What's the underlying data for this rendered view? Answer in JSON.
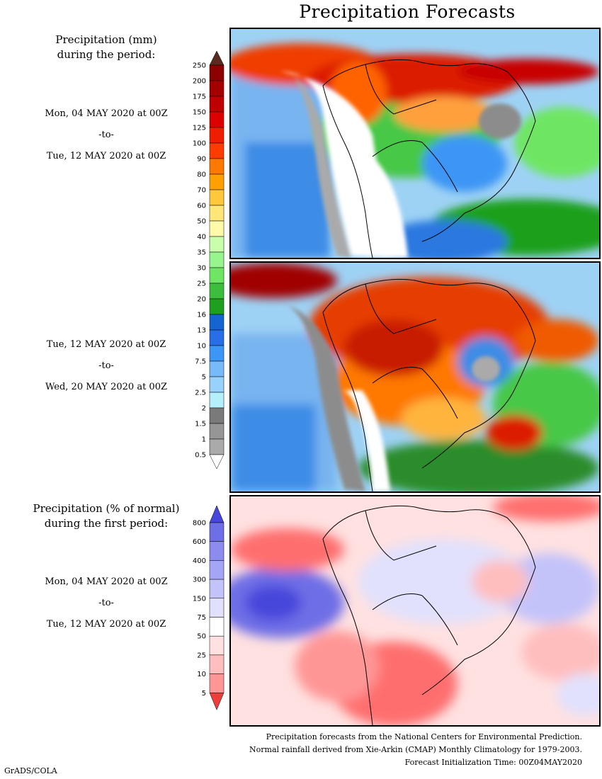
{
  "title": "Precipitation Forecasts",
  "section1": {
    "header_line1": "Precipitation (mm)",
    "header_line2": "during the period:",
    "start": "Mon, 04 MAY 2020 at 00Z",
    "sep": "-to-",
    "end": "Tue, 12 MAY 2020 at 00Z"
  },
  "section2": {
    "start": "Tue, 12 MAY 2020 at 00Z",
    "sep": "-to-",
    "end": "Wed, 20 MAY 2020 at 00Z"
  },
  "section3": {
    "header_line1": "Precipitation (% of normal)",
    "header_line2": "during the first period:",
    "start": "Mon, 04 MAY 2020 at 00Z",
    "sep": "-to-",
    "end": "Tue, 12 MAY 2020 at 00Z"
  },
  "precip_scale": {
    "labels": [
      "250",
      "200",
      "175",
      "150",
      "125",
      "100",
      "90",
      "80",
      "70",
      "60",
      "50",
      "40",
      "35",
      "30",
      "25",
      "20",
      "16",
      "13",
      "10",
      "7.5",
      "5",
      "2.5",
      "2",
      "1.5",
      "1",
      "0.5"
    ],
    "colors": [
      "#8c0000",
      "#a50000",
      "#be0000",
      "#dc0000",
      "#f01e00",
      "#ff3c00",
      "#ff7800",
      "#ffa000",
      "#ffc83c",
      "#ffe678",
      "#fffaaa",
      "#c8ffaa",
      "#96f58c",
      "#6ee664",
      "#3cbe3c",
      "#1ea01e",
      "#1464d2",
      "#286ee6",
      "#3c96f5",
      "#78b9fa",
      "#96d2fa",
      "#b4f0fa",
      "#7a7a7a",
      "#969696",
      "#aaaaaa",
      "#c8c8c8"
    ],
    "top_color": "#5a2a1e"
  },
  "pct_scale": {
    "labels": [
      "800",
      "600",
      "400",
      "300",
      "150",
      "75",
      "50",
      "25",
      "10",
      "5"
    ],
    "colors": [
      "#6e6ee6",
      "#8c8cf0",
      "#a5a5f5",
      "#c3c3fa",
      "#e1e1fd",
      "#ffffff",
      "#ffe1e1",
      "#ffbebe",
      "#ff9696",
      "#ff6e6e"
    ],
    "top_color": "#4646dc",
    "bottom_color": "#f03c3c"
  },
  "footer": {
    "line1": "Precipitation forecasts from the National Centers for Environmental Prediction.",
    "line2": "Normal rainfall derived from Xie-Arkin (CMAP) Monthly Climatology for 1979-2003.",
    "line3": "Forecast Initialization Time: 00Z04MAY2020"
  },
  "credit": "GrADS/COLA"
}
